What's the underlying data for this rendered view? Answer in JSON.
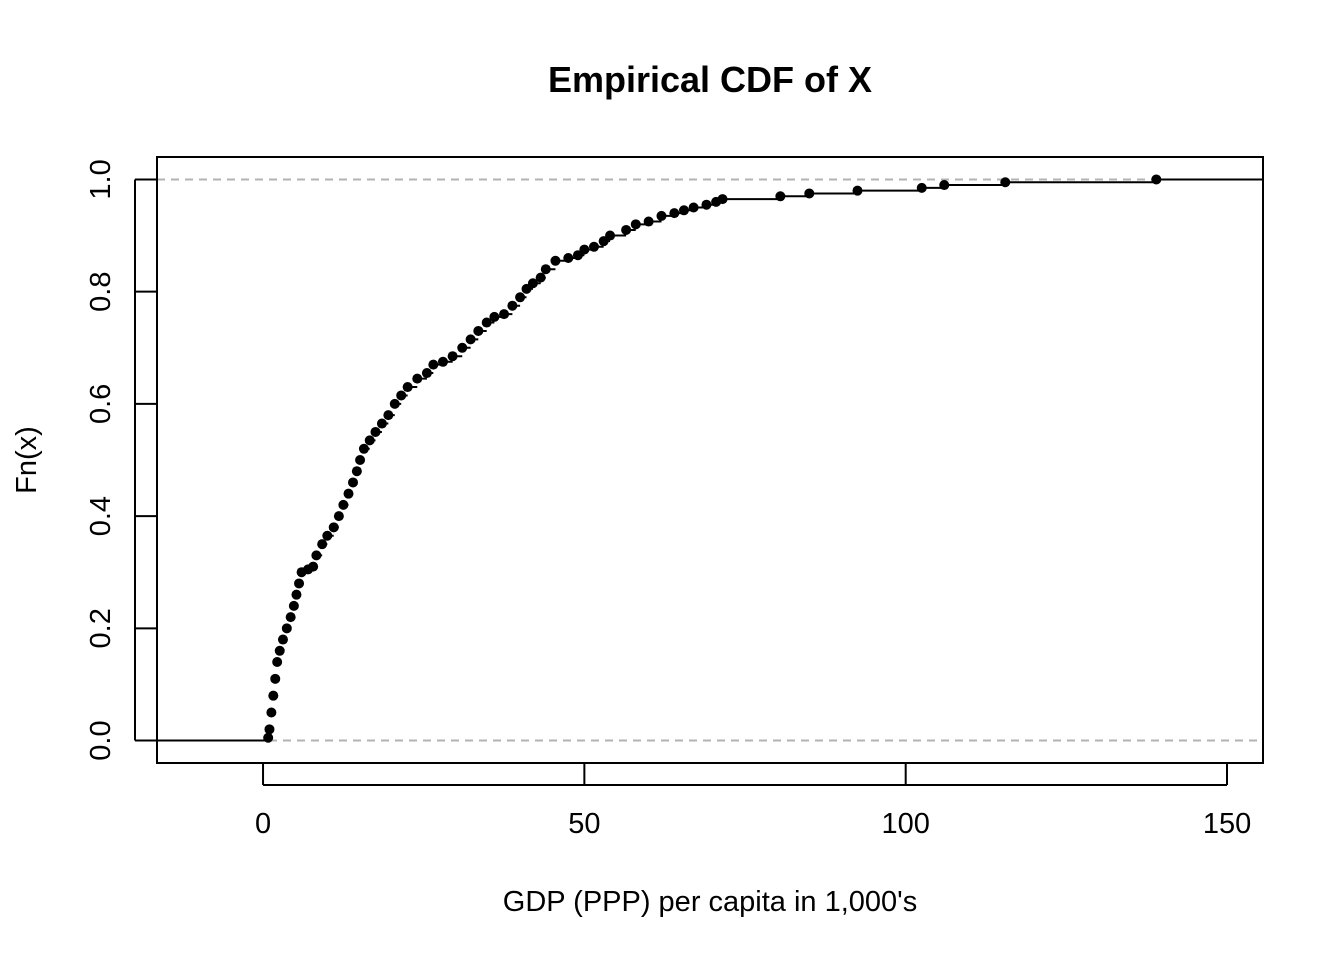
{
  "chart_data": {
    "type": "line",
    "subtype": "empirical-cdf-step",
    "title": "Empirical CDF of X",
    "xlabel": "GDP (PPP) per capita in 1,000's",
    "ylabel": "Fn(x)",
    "xlim": [
      -16.5,
      155.6
    ],
    "ylim": [
      -0.04,
      1.04
    ],
    "xticks": [
      0,
      50,
      100,
      150
    ],
    "yticks": [
      0.0,
      0.2,
      0.4,
      0.6,
      0.8,
      1.0
    ],
    "xtick_labels": [
      "0",
      "50",
      "100",
      "150"
    ],
    "ytick_labels": [
      "0.0",
      "0.2",
      "0.4",
      "0.6",
      "0.8",
      "1.0"
    ],
    "reference_lines": [
      0,
      1
    ],
    "grid": false,
    "colors": {
      "points": "#000000",
      "step_line": "#000000",
      "reference_lines": "#b3b3b3"
    },
    "points": [
      [
        0.8,
        0.005
      ],
      [
        1.0,
        0.02
      ],
      [
        1.3,
        0.05
      ],
      [
        1.6,
        0.08
      ],
      [
        1.9,
        0.11
      ],
      [
        2.2,
        0.14
      ],
      [
        2.6,
        0.16
      ],
      [
        3.1,
        0.18
      ],
      [
        3.7,
        0.2
      ],
      [
        4.3,
        0.22
      ],
      [
        4.8,
        0.24
      ],
      [
        5.2,
        0.26
      ],
      [
        5.6,
        0.28
      ],
      [
        6.0,
        0.3
      ],
      [
        7.0,
        0.305
      ],
      [
        7.8,
        0.31
      ],
      [
        8.3,
        0.33
      ],
      [
        9.2,
        0.35
      ],
      [
        10.0,
        0.365
      ],
      [
        11.0,
        0.38
      ],
      [
        11.8,
        0.4
      ],
      [
        12.5,
        0.42
      ],
      [
        13.3,
        0.44
      ],
      [
        14.0,
        0.46
      ],
      [
        14.6,
        0.48
      ],
      [
        15.1,
        0.5
      ],
      [
        15.7,
        0.52
      ],
      [
        16.6,
        0.535
      ],
      [
        17.5,
        0.55
      ],
      [
        18.5,
        0.565
      ],
      [
        19.5,
        0.58
      ],
      [
        20.5,
        0.6
      ],
      [
        21.5,
        0.615
      ],
      [
        22.5,
        0.63
      ],
      [
        24.0,
        0.645
      ],
      [
        25.5,
        0.655
      ],
      [
        26.5,
        0.67
      ],
      [
        28.0,
        0.675
      ],
      [
        29.5,
        0.685
      ],
      [
        31.0,
        0.7
      ],
      [
        32.3,
        0.715
      ],
      [
        33.5,
        0.73
      ],
      [
        34.8,
        0.745
      ],
      [
        36.0,
        0.755
      ],
      [
        37.5,
        0.76
      ],
      [
        38.8,
        0.775
      ],
      [
        40.0,
        0.79
      ],
      [
        41.0,
        0.805
      ],
      [
        42.0,
        0.815
      ],
      [
        43.2,
        0.825
      ],
      [
        44.0,
        0.84
      ],
      [
        45.5,
        0.855
      ],
      [
        47.5,
        0.86
      ],
      [
        49.0,
        0.865
      ],
      [
        50.0,
        0.875
      ],
      [
        51.5,
        0.88
      ],
      [
        53.0,
        0.89
      ],
      [
        54.0,
        0.9
      ],
      [
        56.5,
        0.91
      ],
      [
        58.0,
        0.92
      ],
      [
        60.0,
        0.925
      ],
      [
        62.0,
        0.935
      ],
      [
        64.0,
        0.94
      ],
      [
        65.5,
        0.945
      ],
      [
        67.0,
        0.95
      ],
      [
        69.0,
        0.955
      ],
      [
        70.5,
        0.96
      ],
      [
        71.5,
        0.965
      ],
      [
        80.5,
        0.97
      ],
      [
        85.0,
        0.975
      ],
      [
        92.5,
        0.98
      ],
      [
        102.5,
        0.985
      ],
      [
        106.0,
        0.99
      ],
      [
        115.5,
        0.995
      ],
      [
        139.0,
        1.0
      ]
    ]
  }
}
